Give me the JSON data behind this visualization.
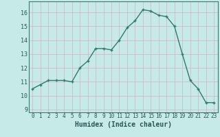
{
  "x": [
    0,
    1,
    2,
    3,
    4,
    5,
    6,
    7,
    8,
    9,
    10,
    11,
    12,
    13,
    14,
    15,
    16,
    17,
    18,
    19,
    20,
    21,
    22,
    23
  ],
  "y": [
    10.5,
    10.8,
    11.1,
    11.1,
    11.1,
    11.0,
    12.0,
    12.5,
    13.4,
    13.4,
    13.3,
    14.0,
    14.9,
    15.4,
    16.2,
    16.1,
    15.8,
    15.7,
    15.0,
    13.0,
    11.1,
    10.5,
    9.5,
    9.5
  ],
  "xlabel": "Humidex (Indice chaleur)",
  "xlim": [
    -0.5,
    23.5
  ],
  "ylim": [
    8.8,
    16.8
  ],
  "yticks": [
    9,
    10,
    11,
    12,
    13,
    14,
    15,
    16
  ],
  "xticks": [
    0,
    1,
    2,
    3,
    4,
    5,
    6,
    7,
    8,
    9,
    10,
    11,
    12,
    13,
    14,
    15,
    16,
    17,
    18,
    19,
    20,
    21,
    22,
    23
  ],
  "line_color": "#2d7a6e",
  "marker": "+",
  "bg_color": "#c5eae8",
  "grid_color_v": "#d4aebc",
  "grid_color_h": "#d4aebc",
  "axis_color": "#3d7a70",
  "font_color": "#2a5555",
  "tick_fontsize": 5.5,
  "xlabel_fontsize": 7.0,
  "ytick_fontsize": 6.0,
  "linewidth": 1.0,
  "markersize": 3.5
}
